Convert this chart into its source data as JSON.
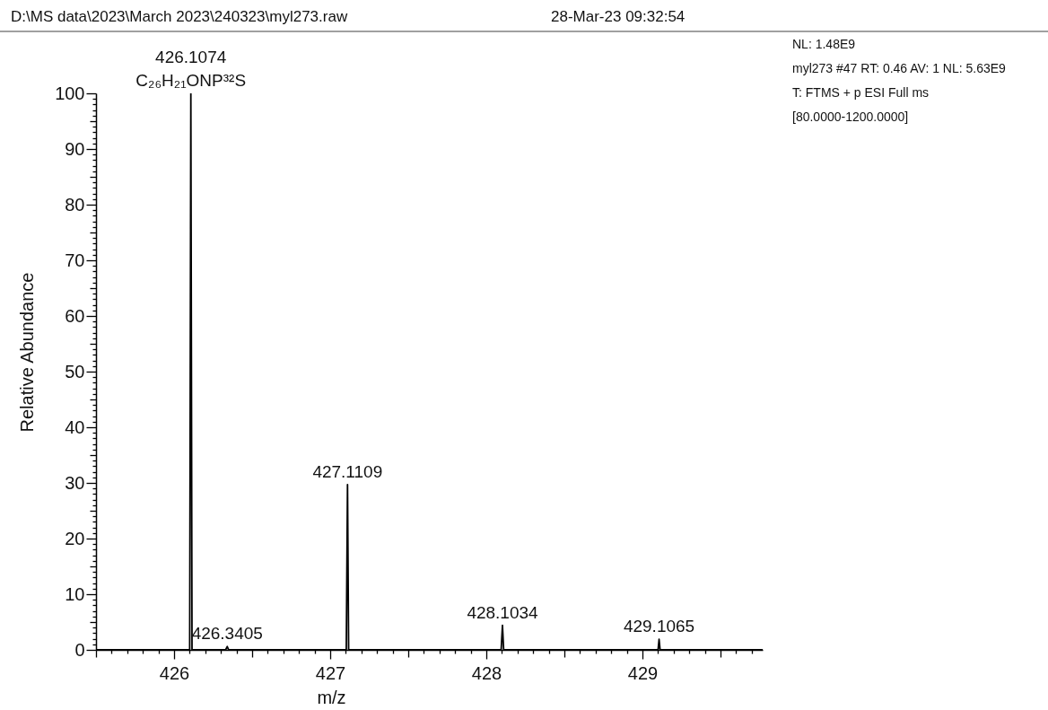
{
  "chart_data": {
    "type": "line",
    "title": "D:\\MS data\\2023\\March 2023\\240323\\myl273.raw",
    "subtitle": "28-Mar-23 09:32:54",
    "xlabel": "m/z",
    "ylabel": "Relative Abundance",
    "color": "#000000",
    "x": [
      425.5,
      426.1,
      426.1074,
      426.115,
      426.33,
      426.3405,
      426.35,
      427.103,
      427.1109,
      427.118,
      428.095,
      428.1034,
      428.111,
      429.1,
      429.1065,
      429.113,
      429.77
    ],
    "values": [
      0,
      0,
      100,
      0,
      0,
      0.6,
      0,
      0,
      29.7,
      0,
      0,
      4.4,
      0,
      0,
      1.9,
      0,
      0
    ],
    "xlim": [
      425.5,
      429.77
    ],
    "xticks": [
      {
        "value": 425.5,
        "label": null
      },
      {
        "value": 425.6,
        "label": null
      },
      {
        "value": 425.7,
        "label": null
      },
      {
        "value": 425.8,
        "label": null
      },
      {
        "value": 425.9,
        "label": null
      },
      426,
      {
        "value": 426.1,
        "label": null
      },
      {
        "value": 426.2,
        "label": null
      },
      {
        "value": 426.3,
        "label": null
      },
      {
        "value": 426.4,
        "label": null
      },
      {
        "value": 426.5,
        "label": null
      },
      {
        "value": 426.6,
        "label": null
      },
      {
        "value": 426.7,
        "label": null
      },
      {
        "value": 426.8,
        "label": null
      },
      {
        "value": 426.9,
        "label": null
      },
      427,
      {
        "value": 427.1,
        "label": null
      },
      {
        "value": 427.2,
        "label": null
      },
      {
        "value": 427.3,
        "label": null
      },
      {
        "value": 427.4,
        "label": null
      },
      {
        "value": 427.5,
        "label": null
      },
      {
        "value": 427.6,
        "label": null
      },
      {
        "value": 427.7,
        "label": null
      },
      {
        "value": 427.8,
        "label": null
      },
      {
        "value": 427.9,
        "label": null
      },
      428,
      {
        "value": 428.1,
        "label": null
      },
      {
        "value": 428.2,
        "label": null
      },
      {
        "value": 428.3,
        "label": null
      },
      {
        "value": 428.4,
        "label": null
      },
      {
        "value": 428.5,
        "label": null
      },
      {
        "value": 428.6,
        "label": null
      },
      {
        "value": 428.7,
        "label": null
      },
      {
        "value": 428.8,
        "label": null
      },
      {
        "value": 428.9,
        "label": null
      },
      429,
      {
        "value": 429.1,
        "label": null
      },
      {
        "value": 429.2,
        "label": null
      },
      {
        "value": 429.3,
        "label": null
      },
      {
        "value": 429.4,
        "label": null
      },
      {
        "value": 429.5,
        "label": null
      },
      {
        "value": 429.6,
        "label": null
      },
      {
        "value": 429.7,
        "label": null
      }
    ],
    "ylim": [
      0,
      100
    ],
    "yticks": [
      0,
      {
        "value": 1,
        "label": null
      },
      {
        "value": 2,
        "label": null
      },
      {
        "value": 3,
        "label": null
      },
      {
        "value": 4,
        "label": null
      },
      {
        "value": 5,
        "label": null
      },
      {
        "value": 6,
        "label": null
      },
      {
        "value": 7,
        "label": null
      },
      {
        "value": 8,
        "label": null
      },
      {
        "value": 9,
        "label": null
      },
      10,
      {
        "value": 11,
        "label": null
      },
      {
        "value": 12,
        "label": null
      },
      {
        "value": 13,
        "label": null
      },
      {
        "value": 14,
        "label": null
      },
      {
        "value": 15,
        "label": null
      },
      {
        "value": 16,
        "label": null
      },
      {
        "value": 17,
        "label": null
      },
      {
        "value": 18,
        "label": null
      },
      {
        "value": 19,
        "label": null
      },
      20,
      {
        "value": 21,
        "label": null
      },
      {
        "value": 22,
        "label": null
      },
      {
        "value": 23,
        "label": null
      },
      {
        "value": 24,
        "label": null
      },
      {
        "value": 25,
        "label": null
      },
      {
        "value": 26,
        "label": null
      },
      {
        "value": 27,
        "label": null
      },
      {
        "value": 28,
        "label": null
      },
      {
        "value": 29,
        "label": null
      },
      30,
      {
        "value": 31,
        "label": null
      },
      {
        "value": 32,
        "label": null
      },
      {
        "value": 33,
        "label": null
      },
      {
        "value": 34,
        "label": null
      },
      {
        "value": 35,
        "label": null
      },
      {
        "value": 36,
        "label": null
      },
      {
        "value": 37,
        "label": null
      },
      {
        "value": 38,
        "label": null
      },
      {
        "value": 39,
        "label": null
      },
      40,
      {
        "value": 41,
        "label": null
      },
      {
        "value": 42,
        "label": null
      },
      {
        "value": 43,
        "label": null
      },
      {
        "value": 44,
        "label": null
      },
      {
        "value": 45,
        "label": null
      },
      {
        "value": 46,
        "label": null
      },
      {
        "value": 47,
        "label": null
      },
      {
        "value": 48,
        "label": null
      },
      {
        "value": 49,
        "label": null
      },
      50,
      {
        "value": 51,
        "label": null
      },
      {
        "value": 52,
        "label": null
      },
      {
        "value": 53,
        "label": null
      },
      {
        "value": 54,
        "label": null
      },
      {
        "value": 55,
        "label": null
      },
      {
        "value": 56,
        "label": null
      },
      {
        "value": 57,
        "label": null
      },
      {
        "value": 58,
        "label": null
      },
      {
        "value": 59,
        "label": null
      },
      60,
      {
        "value": 61,
        "label": null
      },
      {
        "value": 62,
        "label": null
      },
      {
        "value": 63,
        "label": null
      },
      {
        "value": 64,
        "label": null
      },
      {
        "value": 65,
        "label": null
      },
      {
        "value": 66,
        "label": null
      },
      {
        "value": 67,
        "label": null
      },
      {
        "value": 68,
        "label": null
      },
      {
        "value": 69,
        "label": null
      },
      70,
      {
        "value": 71,
        "label": null
      },
      {
        "value": 72,
        "label": null
      },
      {
        "value": 73,
        "label": null
      },
      {
        "value": 74,
        "label": null
      },
      {
        "value": 75,
        "label": null
      },
      {
        "value": 76,
        "label": null
      },
      {
        "value": 77,
        "label": null
      },
      {
        "value": 78,
        "label": null
      },
      {
        "value": 79,
        "label": null
      },
      80,
      {
        "value": 81,
        "label": null
      },
      {
        "value": 82,
        "label": null
      },
      {
        "value": 83,
        "label": null
      },
      {
        "value": 84,
        "label": null
      },
      {
        "value": 85,
        "label": null
      },
      {
        "value": 86,
        "label": null
      },
      {
        "value": 87,
        "label": null
      },
      {
        "value": 88,
        "label": null
      },
      {
        "value": 89,
        "label": null
      },
      90,
      {
        "value": 91,
        "label": null
      },
      {
        "value": 92,
        "label": null
      },
      {
        "value": 93,
        "label": null
      },
      {
        "value": 94,
        "label": null
      },
      {
        "value": 95,
        "label": null
      },
      {
        "value": 96,
        "label": null
      },
      {
        "value": 97,
        "label": null
      },
      {
        "value": 98,
        "label": null
      },
      {
        "value": 99,
        "label": null
      },
      100
    ],
    "annotations": [
      {
        "text": "426.1074",
        "x": 426.1074,
        "y": 100
      },
      {
        "text": "C₂₆H₂₁ONP³²S",
        "x": 426.1074,
        "y": 100
      },
      {
        "text": "426.3405",
        "x": 426.3405,
        "y": 0.6
      },
      {
        "text": "427.1109",
        "x": 427.1109,
        "y": 29.7
      },
      {
        "text": "428.1034",
        "x": 428.1034,
        "y": 4.4
      },
      {
        "text": "429.1065",
        "x": 429.1065,
        "y": 1.9
      },
      "NL: 1.48E9",
      "myl273 #47 RT: 0.46 AV: 1 NL: 5.63E9",
      "T: FTMS + p ESI Full ms",
      "[80.0000-1200.0000]"
    ]
  }
}
